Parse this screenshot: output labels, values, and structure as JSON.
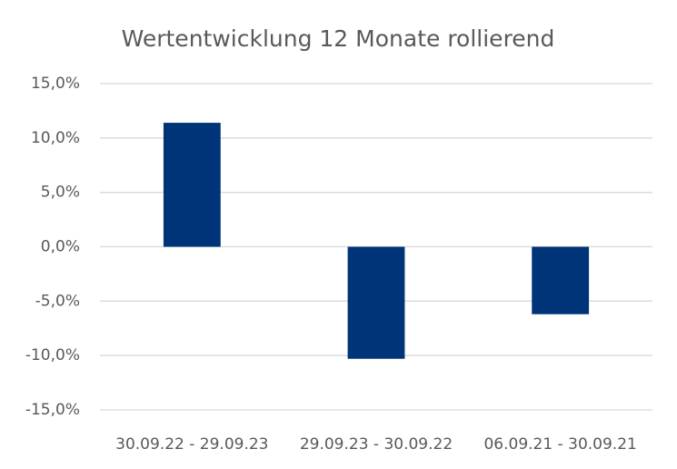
{
  "chart_data": {
    "type": "bar",
    "title": "Wertentwicklung 12 Monate rollierend",
    "categories": [
      "30.09.22 - 29.09.23",
      "29.09.23 - 30.09.22",
      "06.09.21 - 30.09.21"
    ],
    "values": [
      11.4,
      -10.3,
      -6.2
    ],
    "color": "#003478",
    "ylim": [
      -15,
      15
    ],
    "yticks": [
      {
        "value": -15,
        "label": "-15,0%"
      },
      {
        "value": -10,
        "label": "-10,0%"
      },
      {
        "value": -5,
        "label": "-5,0%"
      },
      {
        "value": 0,
        "label": "0,0%"
      },
      {
        "value": 5,
        "label": "5,0%"
      },
      {
        "value": 10,
        "label": "10,0%"
      },
      {
        "value": 15,
        "label": "15,0%"
      }
    ],
    "grid": true
  }
}
